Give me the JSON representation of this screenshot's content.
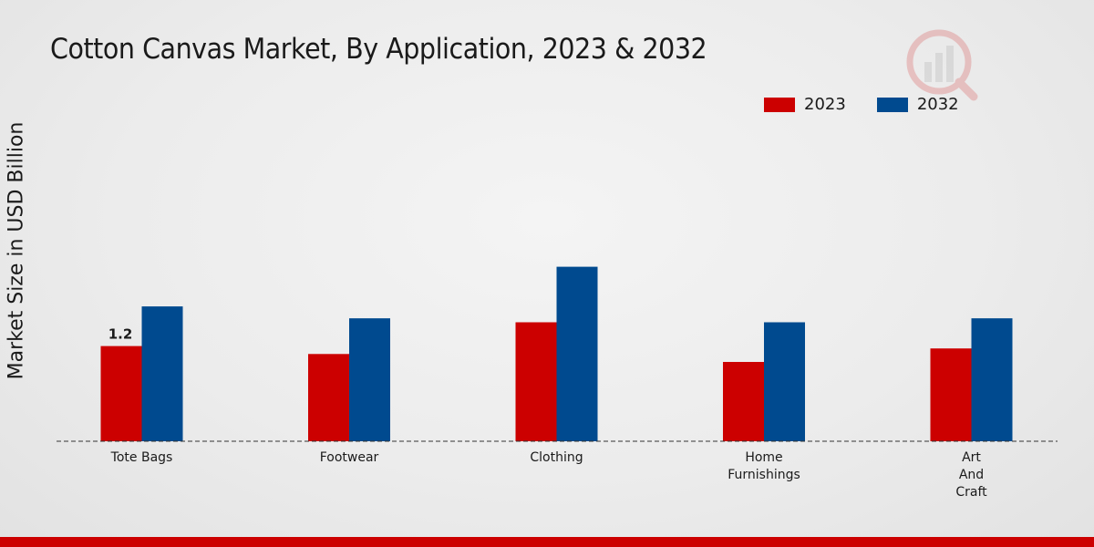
{
  "chart_data": {
    "type": "bar",
    "title": "Cotton Canvas Market, By Application, 2023 & 2032",
    "xlabel": "",
    "ylabel": "Market Size in USD Billion",
    "ylim": [
      0,
      4
    ],
    "categories": [
      [
        "Tote Bags"
      ],
      [
        "Footwear"
      ],
      [
        "Clothing"
      ],
      [
        "Home",
        "Furnishings"
      ],
      [
        "Art",
        "And",
        "Craft"
      ]
    ],
    "series": [
      {
        "name": "2023",
        "color": "#cc0000",
        "values": [
          1.2,
          1.1,
          1.5,
          1.0,
          1.17
        ]
      },
      {
        "name": "2032",
        "color": "#004a8f",
        "values": [
          1.7,
          1.55,
          2.2,
          1.5,
          1.55
        ]
      }
    ],
    "data_labels": [
      {
        "series": 0,
        "index": 0,
        "text": "1.2"
      }
    ],
    "grid": false,
    "legend_position": "top-right"
  }
}
